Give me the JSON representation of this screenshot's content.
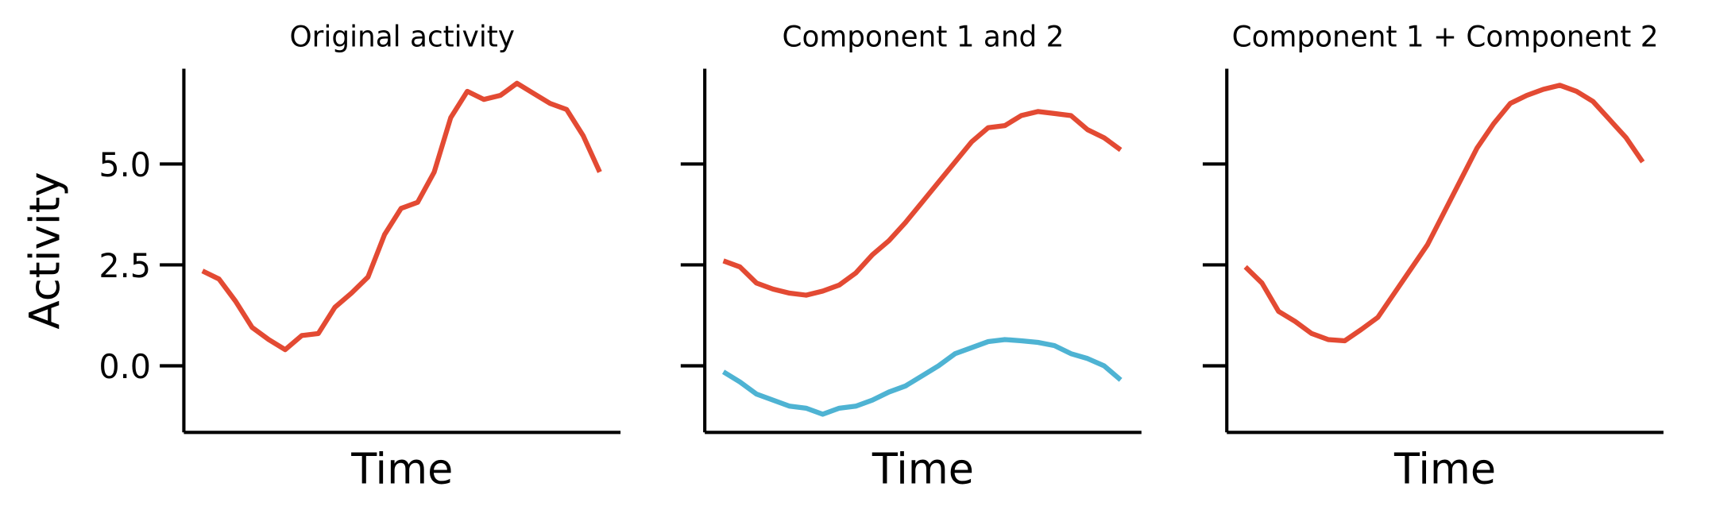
{
  "chart_data": [
    {
      "type": "line",
      "title": "Original activity",
      "xlabel": "Time",
      "ylabel": "Activity",
      "ylim": [
        -1.65,
        7.36
      ],
      "yticks": [
        {
          "value": 0,
          "label": "0.0"
        },
        2.5,
        {
          "value": 5,
          "label": "5.0"
        }
      ],
      "series": [
        {
          "color": "#e34a33",
          "values": [
            2.35,
            2.15,
            1.6,
            0.95,
            0.65,
            0.4,
            0.75,
            0.8,
            1.45,
            1.8,
            2.2,
            3.25,
            3.9,
            4.05,
            4.8,
            6.15,
            6.8,
            6.6,
            6.7,
            7.0,
            6.75,
            6.5,
            6.35,
            5.7,
            4.8
          ]
        }
      ]
    },
    {
      "type": "line",
      "title": "Component 1 and 2",
      "xlabel": "Time",
      "ylim": [
        -1.65,
        7.36
      ],
      "yticks": [
        0,
        2.5,
        5
      ],
      "series": [
        {
          "color": "#e34a33",
          "values": [
            2.6,
            2.45,
            2.05,
            1.9,
            1.8,
            1.75,
            1.85,
            2.0,
            2.3,
            2.75,
            3.1,
            3.55,
            4.05,
            4.55,
            5.05,
            5.55,
            5.9,
            5.95,
            6.2,
            6.3,
            6.25,
            6.2,
            5.85,
            5.65,
            5.35
          ]
        },
        {
          "color": "#4eb3d3",
          "values": [
            -0.15,
            -0.4,
            -0.7,
            -0.85,
            -1.0,
            -1.05,
            -1.2,
            -1.05,
            -1.0,
            -0.85,
            -0.65,
            -0.5,
            -0.25,
            0.0,
            0.3,
            0.45,
            0.6,
            0.65,
            0.62,
            0.58,
            0.5,
            0.3,
            0.18,
            0.0,
            -0.35
          ]
        }
      ]
    },
    {
      "type": "line",
      "title": "Component 1 + Component 2",
      "xlabel": "Time",
      "ylim": [
        -1.65,
        7.36
      ],
      "yticks": [
        0,
        2.5,
        5
      ],
      "series": [
        {
          "color": "#e34a33",
          "values": [
            2.45,
            2.05,
            1.35,
            1.1,
            0.8,
            0.65,
            0.62,
            0.9,
            1.2,
            1.8,
            2.4,
            3.0,
            3.8,
            4.6,
            5.4,
            6.0,
            6.5,
            6.7,
            6.85,
            6.95,
            6.8,
            6.55,
            6.1,
            5.65,
            5.05
          ]
        }
      ]
    }
  ]
}
